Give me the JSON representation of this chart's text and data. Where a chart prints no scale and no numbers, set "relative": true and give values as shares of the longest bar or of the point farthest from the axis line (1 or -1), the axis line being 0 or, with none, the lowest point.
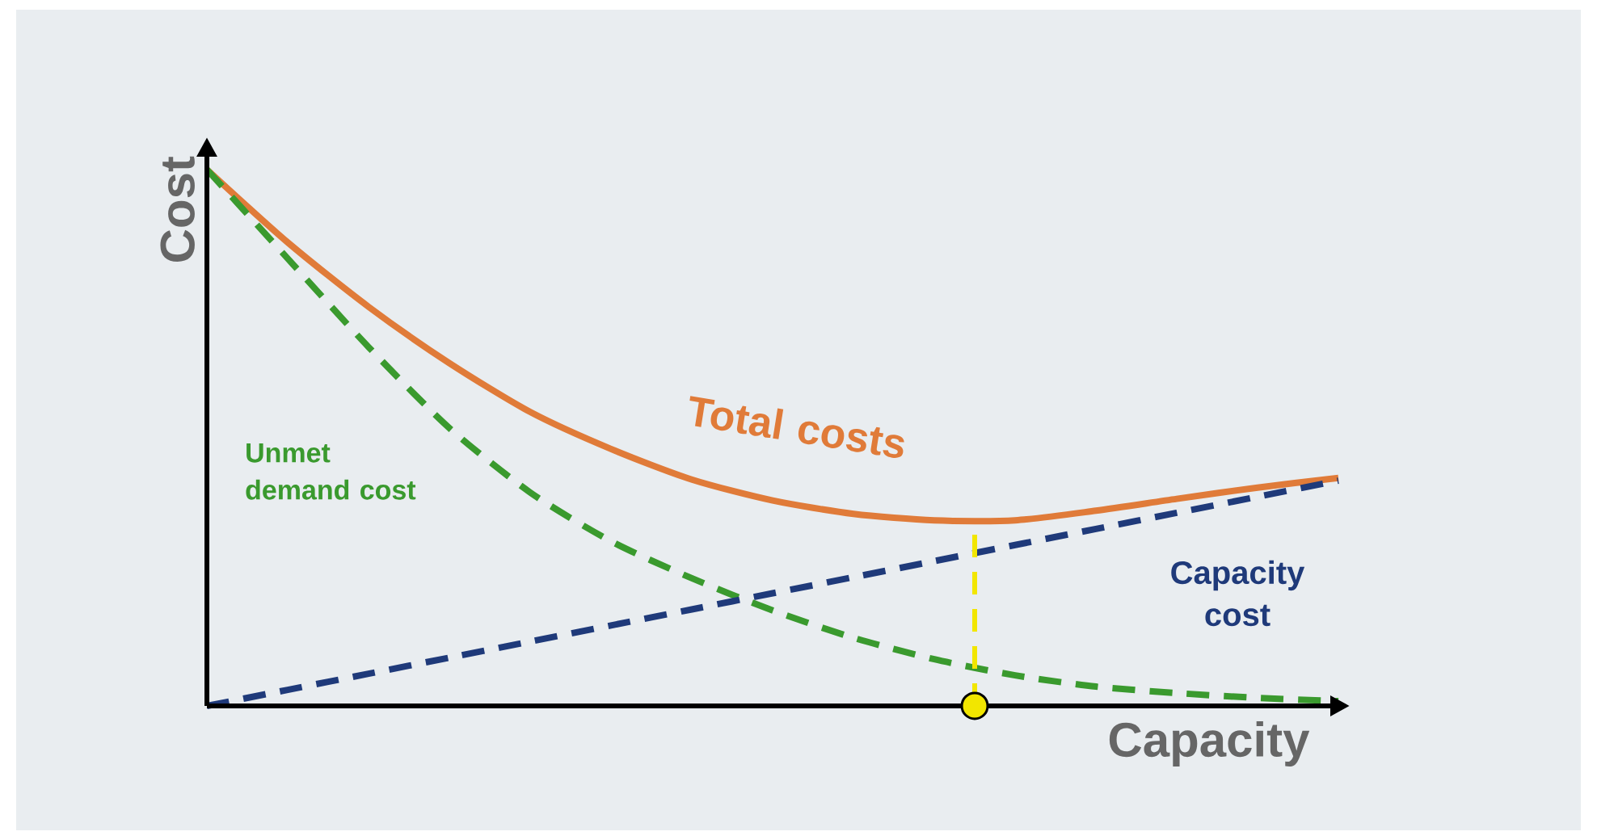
{
  "chart_data": {
    "type": "line",
    "relative": true,
    "xlabel": "Capacity",
    "ylabel": "Cost",
    "categories": [
      null,
      null,
      null,
      null,
      null,
      null,
      null,
      null,
      null,
      null,
      null,
      null,
      null,
      null,
      null
    ],
    "series": [
      {
        "name": "Total costs",
        "color": "#e07b39",
        "line_style": "solid",
        "values": [
          1.0,
          0.864,
          0.744,
          0.639,
          0.548,
          0.479,
          0.422,
          0.383,
          0.358,
          0.346,
          0.346,
          0.364,
          0.386,
          0.407,
          0.425
        ]
      },
      {
        "name": "Unmet demand cost",
        "color": "#3a9a2e",
        "line_style": "dashed",
        "values": [
          1.0,
          0.834,
          0.669,
          0.518,
          0.398,
          0.307,
          0.238,
          0.178,
          0.127,
          0.087,
          0.057,
          0.036,
          0.024,
          0.015,
          0.009
        ]
      },
      {
        "name": "Capacity cost",
        "color": "#1f3a7a",
        "line_style": "dashed",
        "values": [
          0,
          0.03,
          0.06,
          0.09,
          0.12,
          0.15,
          0.18,
          0.21,
          0.24,
          0.27,
          0.3,
          0.33,
          0.36,
          0.39,
          0.42
        ]
      }
    ]
  }
}
